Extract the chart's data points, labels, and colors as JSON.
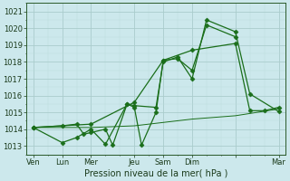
{
  "title": "",
  "xlabel": "Pression niveau de la mer( hPa )",
  "ylabel": "",
  "bg_color": "#cce8ec",
  "grid_color_major": "#aacccc",
  "grid_color_minor": "#bbdddd",
  "line_color": "#1a6e1a",
  "ylim": [
    1012.5,
    1021.5
  ],
  "yticks": [
    1013,
    1014,
    1015,
    1016,
    1017,
    1018,
    1019,
    1020,
    1021
  ],
  "series": [
    {
      "x": [
        0,
        2,
        3,
        3.5,
        4,
        5,
        5.5,
        6.5,
        7,
        7.5,
        8.5,
        9,
        10,
        11,
        12,
        14
      ],
      "y": [
        1014.1,
        1014.2,
        1014.3,
        1013.7,
        1013.8,
        1014.0,
        1013.05,
        1015.5,
        1015.3,
        1013.05,
        1015.0,
        1018.1,
        1018.2,
        1017.5,
        1020.2,
        1019.5
      ]
    },
    {
      "x": [
        0,
        2,
        3,
        4,
        5,
        6.5,
        7,
        8.5,
        9,
        10,
        11,
        12,
        14,
        15,
        17
      ],
      "y": [
        1014.1,
        1013.2,
        1013.5,
        1014.0,
        1013.1,
        1015.5,
        1015.4,
        1015.3,
        1018.0,
        1018.3,
        1017.0,
        1020.5,
        1019.8,
        1016.1,
        1015.05
      ]
    },
    {
      "x": [
        0,
        4,
        7,
        9,
        11,
        14,
        17
      ],
      "y": [
        1014.1,
        1014.1,
        1014.2,
        1014.4,
        1014.6,
        1014.8,
        1015.2
      ]
    },
    {
      "x": [
        0,
        4,
        7,
        9,
        11,
        14,
        15,
        16,
        17
      ],
      "y": [
        1014.1,
        1014.3,
        1015.6,
        1018.1,
        1018.7,
        1019.1,
        1015.1,
        1015.1,
        1015.3
      ]
    }
  ],
  "xtick_positions": [
    0,
    2,
    4,
    7,
    9,
    11,
    14,
    17
  ],
  "xtick_labels": [
    "Ven",
    "Lun",
    "Mer",
    "Jeu",
    "Sam",
    "Dim",
    "",
    "Mar"
  ],
  "tick_fontsize": 6,
  "xlabel_fontsize": 7
}
